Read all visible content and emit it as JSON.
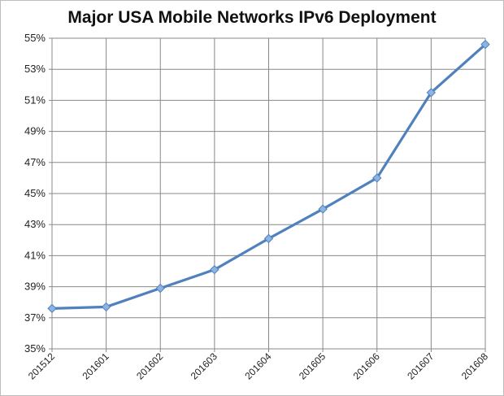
{
  "chart_data": {
    "type": "line",
    "title": "Major USA Mobile Networks IPv6 Deployment",
    "xlabel": "",
    "ylabel": "",
    "categories": [
      "201512",
      "201601",
      "201602",
      "201603",
      "201604",
      "201605",
      "201606",
      "201607",
      "201608"
    ],
    "series": [
      {
        "values": [
          37.6,
          37.7,
          38.9,
          40.1,
          42.1,
          44.0,
          46.0,
          51.5,
          54.6
        ]
      }
    ],
    "ylim": [
      35,
      55
    ],
    "yticks": [
      "35%",
      "37%",
      "39%",
      "41%",
      "43%",
      "45%",
      "47%",
      "49%",
      "51%",
      "53%",
      "55%"
    ],
    "grid": true,
    "legend": "none",
    "colors": {
      "line": "#4f81bd",
      "marker": "#8db3e2",
      "grid": "#888888",
      "axis": "#888888"
    }
  }
}
